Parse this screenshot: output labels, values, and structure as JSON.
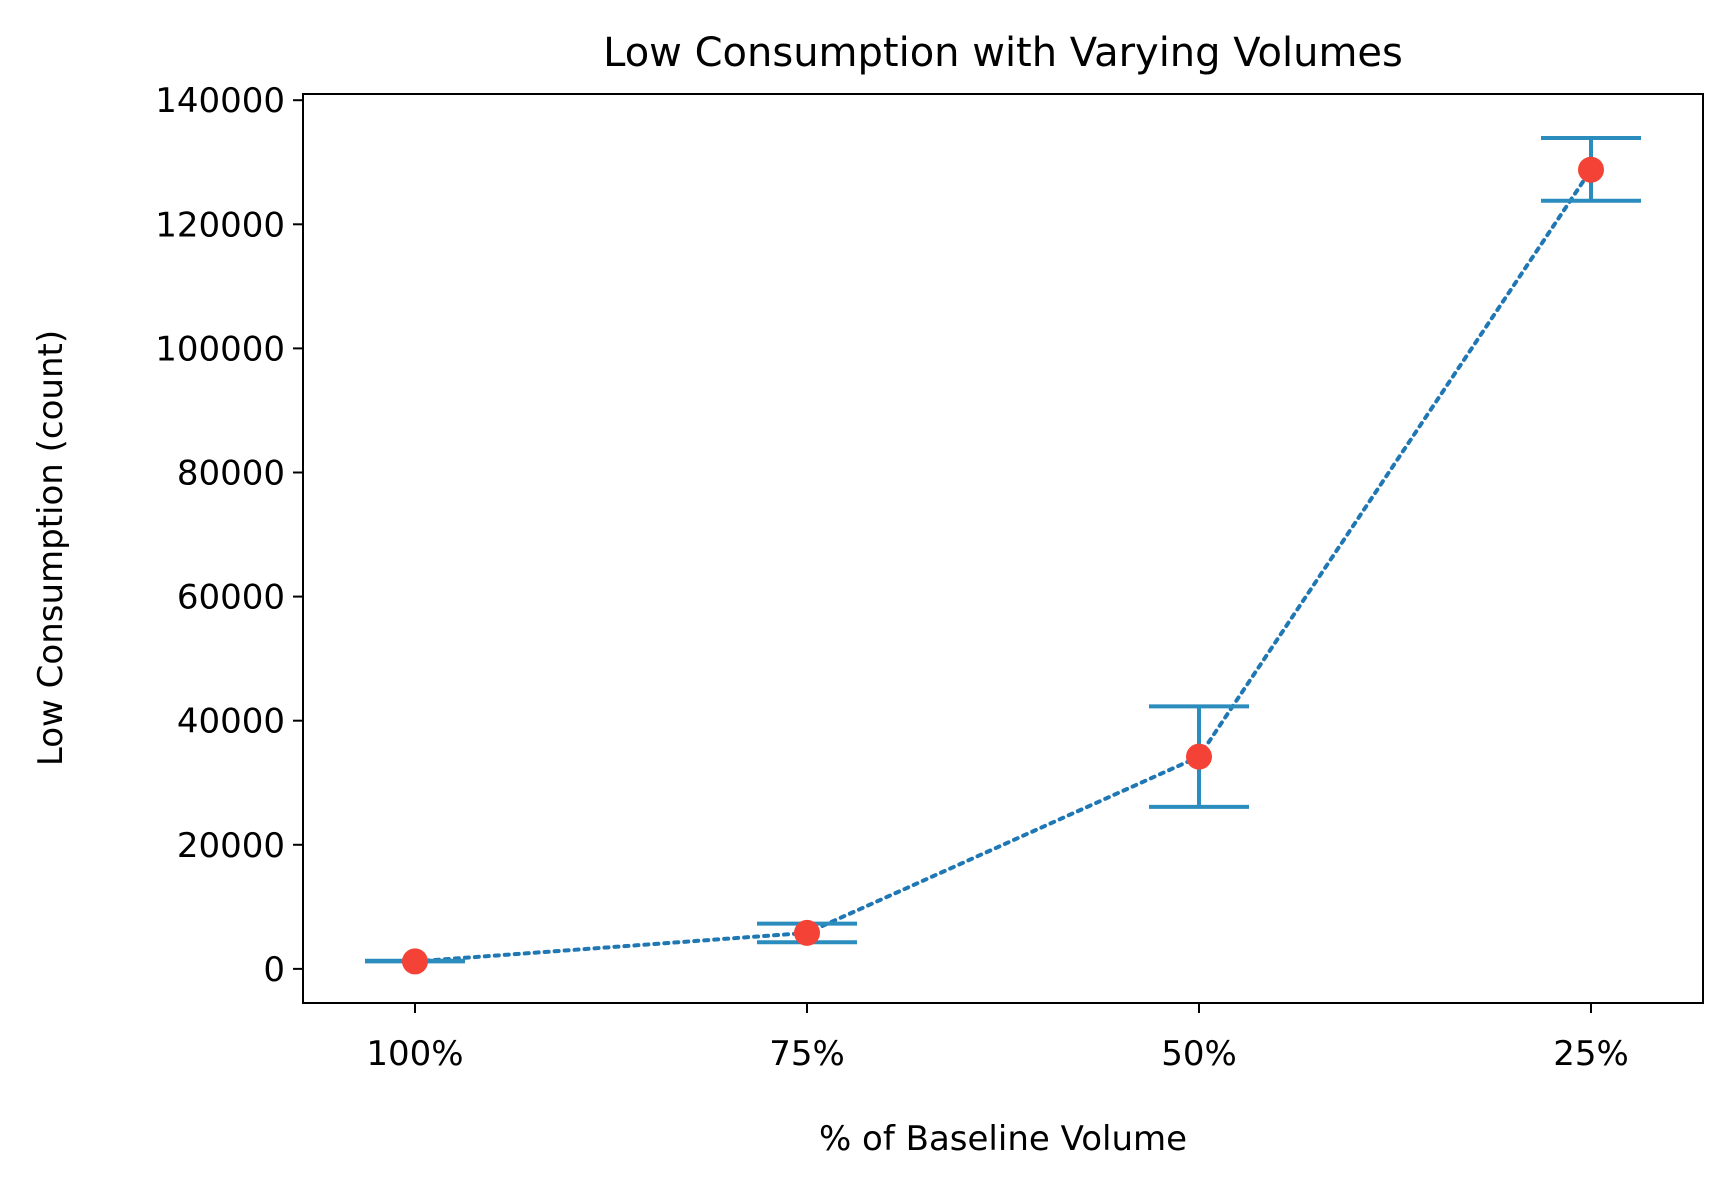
{
  "chart_data": {
    "type": "scatter",
    "title": "Low Consumption with Varying Volumes",
    "xlabel": "% of Baseline Volume",
    "ylabel": "Low Consumption (count)",
    "categories": [
      "100%",
      "75%",
      "50%",
      "25%"
    ],
    "series": [
      {
        "values": [
          1200,
          5800,
          34200,
          128800
        ],
        "error_low": [
          1200,
          4300,
          26100,
          123800
        ],
        "error_high": [
          1300,
          7300,
          42300,
          133900
        ]
      }
    ],
    "y_ticks": [
      0,
      20000,
      40000,
      60000,
      80000,
      100000,
      120000,
      140000
    ],
    "ylim": [
      -5500,
      141000
    ],
    "line_style": "dotted",
    "grid": false,
    "colors": {
      "line": "#1f77b4",
      "errorbar": "#2b8cbe",
      "marker": "#f44336"
    }
  }
}
